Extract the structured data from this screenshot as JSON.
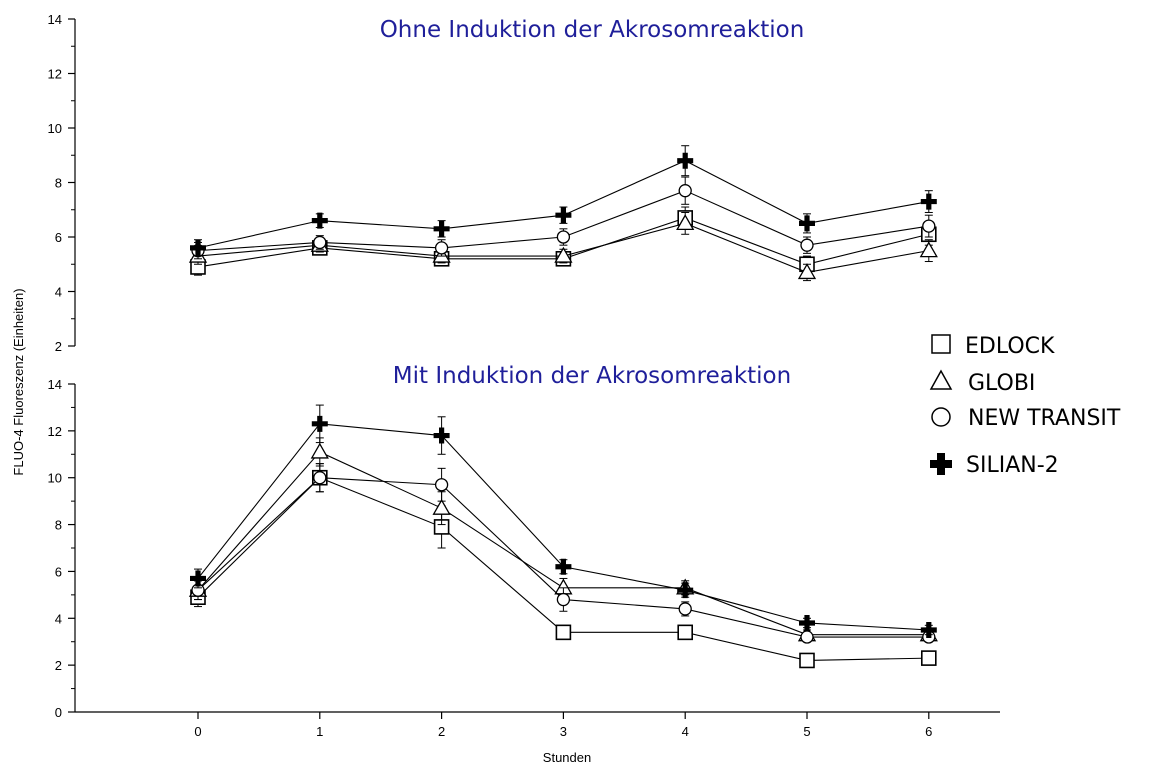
{
  "chart_data": {
    "type": "line",
    "xlabel": "Stunden",
    "ylabel": "FLUO-4 Fluoreszenz (Einheiten)",
    "x": [
      0,
      1,
      2,
      3,
      4,
      5,
      6
    ],
    "legend": {
      "placement": "right",
      "entries": [
        {
          "name": "EDLOCK",
          "marker": "square"
        },
        {
          "name": "GLOBI",
          "marker": "triangle"
        },
        {
          "name": "NEW TRANSIT",
          "marker": "circle"
        },
        {
          "name": "SILIAN-2",
          "marker": "cross"
        }
      ]
    },
    "panels": [
      {
        "title": "Ohne Induktion der Akrosomreaktion",
        "ylim": [
          2,
          14
        ],
        "yticks": [
          2,
          4,
          6,
          8,
          10,
          12,
          14
        ],
        "series": [
          {
            "name": "EDLOCK",
            "marker": "square",
            "values": [
              4.9,
              5.6,
              5.2,
              5.2,
              6.7,
              5.0,
              6.1
            ],
            "errors": [
              0.3,
              0.25,
              0.25,
              0.25,
              0.4,
              0.3,
              0.4
            ]
          },
          {
            "name": "GLOBI",
            "marker": "triangle",
            "values": [
              5.3,
              5.7,
              5.3,
              5.3,
              6.5,
              4.7,
              5.5
            ],
            "errors": [
              0.3,
              0.25,
              0.25,
              0.25,
              0.4,
              0.3,
              0.4
            ]
          },
          {
            "name": "NEW TRANSIT",
            "marker": "circle",
            "values": [
              5.5,
              5.8,
              5.6,
              6.0,
              7.7,
              5.7,
              6.4
            ],
            "errors": [
              0.3,
              0.25,
              0.3,
              0.3,
              0.5,
              0.3,
              0.4
            ]
          },
          {
            "name": "SILIAN-2",
            "marker": "cross",
            "values": [
              5.6,
              6.6,
              6.3,
              6.8,
              8.8,
              6.5,
              7.3
            ],
            "errors": [
              0.3,
              0.25,
              0.3,
              0.3,
              0.55,
              0.35,
              0.4
            ]
          }
        ]
      },
      {
        "title": "Mit Induktion der Akrosomreaktion",
        "ylim": [
          0,
          14
        ],
        "yticks": [
          0,
          2,
          4,
          6,
          8,
          10,
          12,
          14
        ],
        "series": [
          {
            "name": "EDLOCK",
            "marker": "square",
            "values": [
              4.9,
              10.0,
              7.9,
              3.4,
              3.4,
              2.2,
              2.3
            ],
            "errors": [
              0.4,
              0.6,
              0.9,
              0.15,
              0.15,
              0.1,
              0.1
            ]
          },
          {
            "name": "GLOBI",
            "marker": "triangle",
            "values": [
              5.2,
              11.1,
              8.7,
              5.3,
              5.3,
              3.3,
              3.3
            ],
            "errors": [
              0.4,
              0.6,
              0.7,
              0.4,
              0.3,
              0.2,
              0.2
            ]
          },
          {
            "name": "NEW TRANSIT",
            "marker": "circle",
            "values": [
              5.2,
              10.0,
              9.7,
              4.8,
              4.4,
              3.2,
              3.2
            ],
            "errors": [
              0.4,
              0.6,
              0.7,
              0.5,
              0.3,
              0.2,
              0.2
            ]
          },
          {
            "name": "SILIAN-2",
            "marker": "cross",
            "values": [
              5.7,
              12.3,
              11.8,
              6.2,
              5.2,
              3.8,
              3.5
            ],
            "errors": [
              0.4,
              0.8,
              0.8,
              0.3,
              0.3,
              0.2,
              0.2
            ]
          }
        ]
      }
    ]
  }
}
